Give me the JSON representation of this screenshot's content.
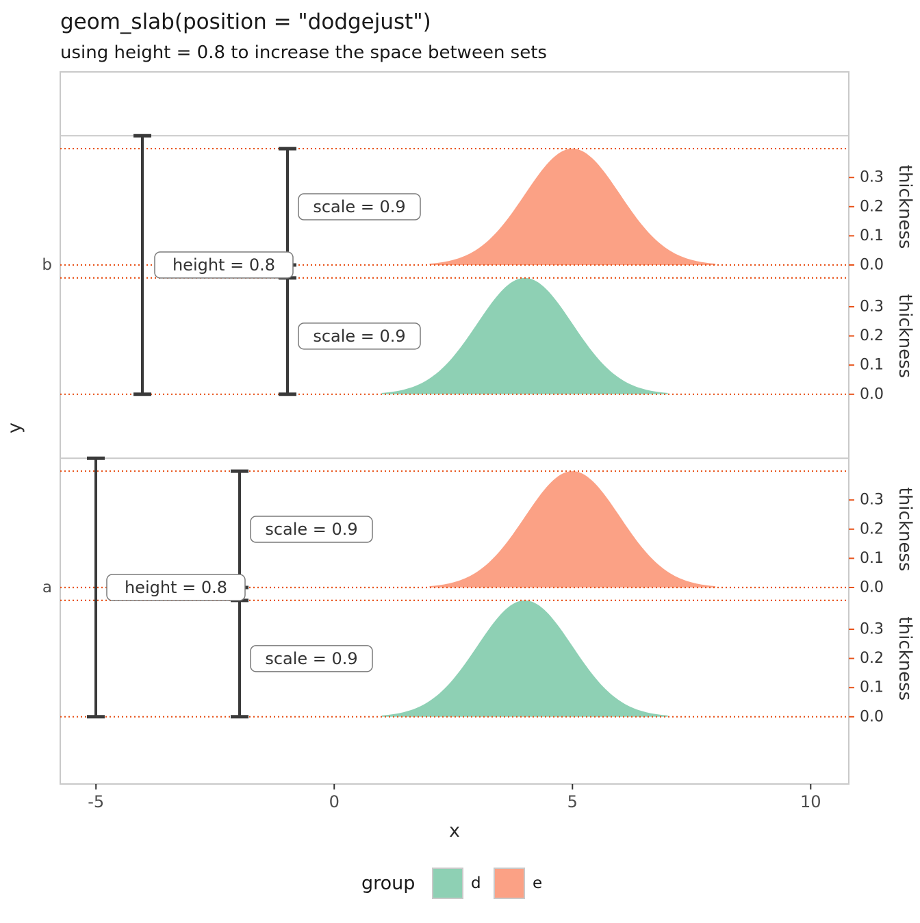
{
  "title": "geom_slab(position = \"dodgejust\")",
  "subtitle": "using height = 0.8 to increase the space between sets",
  "axes": {
    "x": {
      "label": "x"
    },
    "y": {
      "label": "y"
    },
    "thickness": {
      "label": "thickness"
    }
  },
  "annotations": {
    "scale_label": "scale = 0.9",
    "height_label": "height = 0.8"
  },
  "legend": {
    "title": "group",
    "items": [
      {
        "label": "d",
        "color": "#8ed0b4"
      },
      {
        "label": "e",
        "color": "#fba185"
      }
    ]
  },
  "colors": {
    "reference_line": "#e8531a",
    "thickness_axis_text": "#e8531a",
    "bracket": "#3a3a3a",
    "panel_border": "#c9c9c9",
    "band_line": "#c9c9c9",
    "axis_text": "#4d4d4d"
  },
  "chart_data": {
    "type": "area",
    "title": "geom_slab(position = \"dodgejust\")",
    "subtitle": "using height = 0.8 to increase the space between sets",
    "xlabel": "x",
    "ylabel": "y",
    "x_domain": [
      -5.75,
      10.8
    ],
    "x_ticks": [
      -5,
      0,
      5,
      10
    ],
    "y_categories": [
      "a",
      "b"
    ],
    "height": 0.8,
    "scale": 0.9,
    "thickness_ticks": [
      0,
      0.1,
      0.2,
      0.3
    ],
    "thickness_axis_label": "thickness",
    "slabs": [
      {
        "y": "b",
        "group": "e",
        "distribution": "normal",
        "mean": 5,
        "sd": 1,
        "xmin": 2,
        "xmax": 8
      },
      {
        "y": "b",
        "group": "d",
        "distribution": "normal",
        "mean": 4,
        "sd": 1,
        "xmin": 1,
        "xmax": 7
      },
      {
        "y": "a",
        "group": "e",
        "distribution": "normal",
        "mean": 5,
        "sd": 1,
        "xmin": 2,
        "xmax": 8
      },
      {
        "y": "a",
        "group": "d",
        "distribution": "normal",
        "mean": 4,
        "sd": 1,
        "xmin": 1,
        "xmax": 7
      }
    ],
    "legend": {
      "title": "group",
      "entries": [
        "d",
        "e"
      ],
      "position": "bottom"
    },
    "grid": false
  }
}
